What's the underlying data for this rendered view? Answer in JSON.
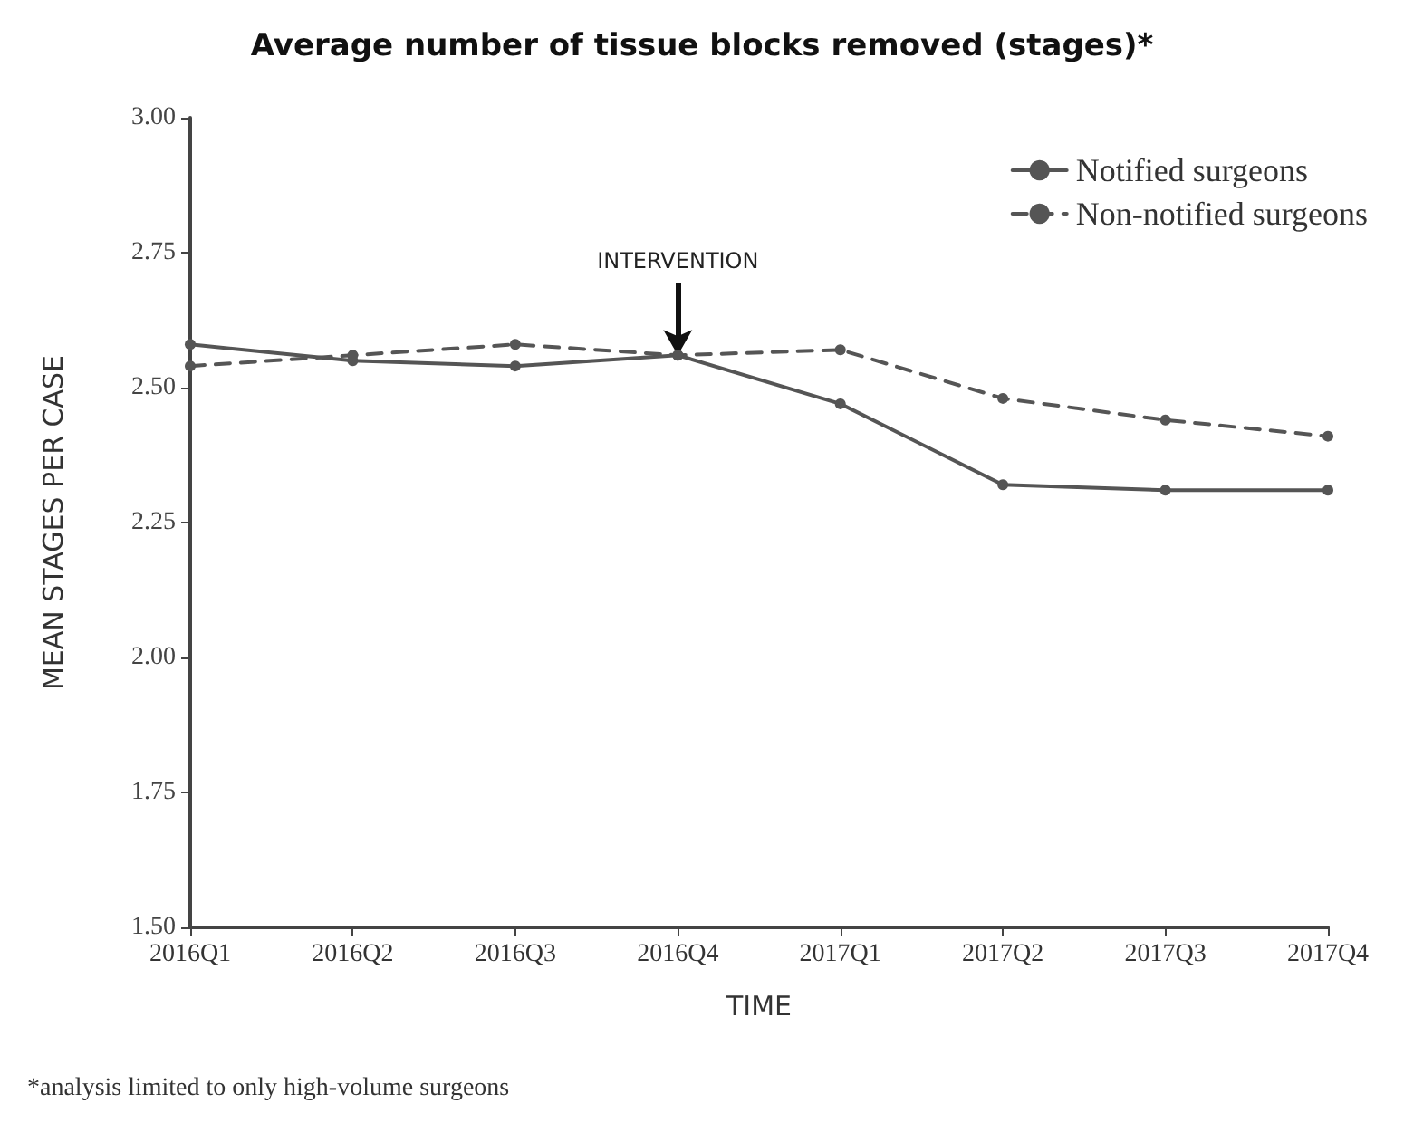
{
  "chart_data": {
    "type": "line",
    "title": "Average number of tissue blocks removed (stages)*",
    "xlabel": "TIME",
    "ylabel": "MEAN STAGES PER CASE",
    "categories": [
      "2016Q1",
      "2016Q2",
      "2016Q3",
      "2016Q4",
      "2017Q1",
      "2017Q2",
      "2017Q3",
      "2017Q4"
    ],
    "series": [
      {
        "name": "Notified surgeons",
        "color": "#555555",
        "line_style": "solid",
        "values": [
          2.58,
          2.55,
          2.54,
          2.56,
          2.47,
          2.32,
          2.31,
          2.31
        ]
      },
      {
        "name": "Non-notified surgeons",
        "color": "#555555",
        "line_style": "dashed",
        "values": [
          2.54,
          2.56,
          2.58,
          2.56,
          2.57,
          2.48,
          2.44,
          2.41
        ]
      }
    ],
    "ylim": [
      1.5,
      3.0
    ],
    "yticks": [
      {
        "value": 1.5,
        "label": "1.50"
      },
      {
        "value": 1.75,
        "label": "1.75"
      },
      {
        "value": 2.0,
        "label": "2.00"
      },
      {
        "value": 2.25,
        "label": "2.25"
      },
      {
        "value": 2.5,
        "label": "2.50"
      },
      {
        "value": 2.75,
        "label": "2.75"
      },
      {
        "value": 3.0,
        "label": "3.00"
      }
    ],
    "grid": false,
    "legend": "top right",
    "marker": "circle",
    "annotations": [
      {
        "text": "INTERVENTION",
        "x": "2016Q4",
        "y": 2.56
      },
      "*analysis limited to only high-volume surgeons"
    ]
  }
}
